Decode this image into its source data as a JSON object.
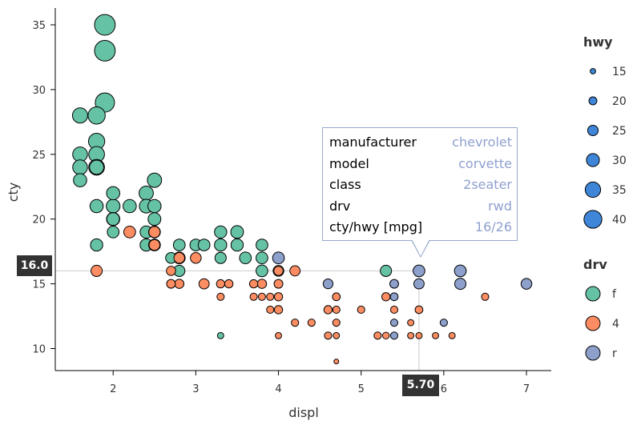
{
  "chart_data": {
    "type": "scatter",
    "xlabel": "displ",
    "ylabel": "cty",
    "xlim": [
      1.3,
      7.3
    ],
    "ylim": [
      8.3,
      36.3
    ],
    "x_ticks": [
      2,
      3,
      4,
      5,
      6,
      7
    ],
    "y_ticks": [
      10,
      15,
      20,
      25,
      30,
      35
    ],
    "size_legend": {
      "title": "hwy",
      "values": [
        15,
        20,
        25,
        30,
        35,
        40
      ]
    },
    "color_legend": {
      "title": "drv",
      "entries": [
        {
          "label": "f",
          "color": "#66c2a5"
        },
        {
          "label": "4",
          "color": "#fc8d62"
        },
        {
          "label": "r",
          "color": "#8da0cb"
        }
      ]
    },
    "points": [
      {
        "x": 1.6,
        "y": 28,
        "hwy": 33,
        "drv": "f"
      },
      {
        "x": 1.6,
        "y": 25,
        "hwy": 32,
        "drv": "f"
      },
      {
        "x": 1.6,
        "y": 24,
        "hwy": 32,
        "drv": "f"
      },
      {
        "x": 1.6,
        "y": 23,
        "hwy": 29,
        "drv": "f"
      },
      {
        "x": 1.8,
        "y": 28,
        "hwy": 37,
        "drv": "f"
      },
      {
        "x": 1.8,
        "y": 26,
        "hwy": 35,
        "drv": "f"
      },
      {
        "x": 1.8,
        "y": 25,
        "hwy": 34,
        "drv": "f"
      },
      {
        "x": 1.8,
        "y": 24,
        "hwy": 34,
        "drv": "f"
      },
      {
        "x": 1.8,
        "y": 24,
        "hwy": 31,
        "drv": "f"
      },
      {
        "x": 1.8,
        "y": 21,
        "hwy": 29,
        "drv": "f"
      },
      {
        "x": 1.8,
        "y": 18,
        "hwy": 27,
        "drv": "f"
      },
      {
        "x": 1.8,
        "y": 16,
        "hwy": 25,
        "drv": "4"
      },
      {
        "x": 1.9,
        "y": 35,
        "hwy": 44,
        "drv": "f"
      },
      {
        "x": 1.9,
        "y": 33,
        "hwy": 44,
        "drv": "f"
      },
      {
        "x": 1.9,
        "y": 29,
        "hwy": 41,
        "drv": "f"
      },
      {
        "x": 2.0,
        "y": 22,
        "hwy": 29,
        "drv": "f"
      },
      {
        "x": 2.0,
        "y": 21,
        "hwy": 30,
        "drv": "f"
      },
      {
        "x": 2.0,
        "y": 20,
        "hwy": 29,
        "drv": "f"
      },
      {
        "x": 2.0,
        "y": 20,
        "hwy": 28,
        "drv": "f"
      },
      {
        "x": 2.0,
        "y": 19,
        "hwy": 26,
        "drv": "f"
      },
      {
        "x": 2.2,
        "y": 21,
        "hwy": 29,
        "drv": "f"
      },
      {
        "x": 2.2,
        "y": 19,
        "hwy": 26,
        "drv": "4"
      },
      {
        "x": 2.4,
        "y": 22,
        "hwy": 31,
        "drv": "f"
      },
      {
        "x": 2.4,
        "y": 21,
        "hwy": 30,
        "drv": "f"
      },
      {
        "x": 2.4,
        "y": 19,
        "hwy": 27,
        "drv": "f"
      },
      {
        "x": 2.4,
        "y": 18,
        "hwy": 27,
        "drv": "f"
      },
      {
        "x": 2.5,
        "y": 23,
        "hwy": 31,
        "drv": "f"
      },
      {
        "x": 2.5,
        "y": 21,
        "hwy": 29,
        "drv": "f"
      },
      {
        "x": 2.5,
        "y": 20,
        "hwy": 28,
        "drv": "f"
      },
      {
        "x": 2.5,
        "y": 19,
        "hwy": 26,
        "drv": "f"
      },
      {
        "x": 2.5,
        "y": 18,
        "hwy": 26,
        "drv": "f"
      },
      {
        "x": 2.5,
        "y": 19,
        "hwy": 25,
        "drv": "4"
      },
      {
        "x": 2.5,
        "y": 18,
        "hwy": 24,
        "drv": "4"
      },
      {
        "x": 2.7,
        "y": 17,
        "hwy": 24,
        "drv": "f"
      },
      {
        "x": 2.7,
        "y": 16,
        "hwy": 21,
        "drv": "4"
      },
      {
        "x": 2.7,
        "y": 15,
        "hwy": 20,
        "drv": "4"
      },
      {
        "x": 2.8,
        "y": 18,
        "hwy": 26,
        "drv": "f"
      },
      {
        "x": 2.8,
        "y": 17,
        "hwy": 26,
        "drv": "f"
      },
      {
        "x": 2.8,
        "y": 16,
        "hwy": 25,
        "drv": "f"
      },
      {
        "x": 2.8,
        "y": 17,
        "hwy": 24,
        "drv": "4"
      },
      {
        "x": 2.8,
        "y": 15,
        "hwy": 21,
        "drv": "4"
      },
      {
        "x": 3.0,
        "y": 18,
        "hwy": 26,
        "drv": "f"
      },
      {
        "x": 3.0,
        "y": 17,
        "hwy": 24,
        "drv": "4"
      },
      {
        "x": 3.1,
        "y": 18,
        "hwy": 26,
        "drv": "f"
      },
      {
        "x": 3.1,
        "y": 15,
        "hwy": 23,
        "drv": "4"
      },
      {
        "x": 3.3,
        "y": 19,
        "hwy": 27,
        "drv": "f"
      },
      {
        "x": 3.3,
        "y": 18,
        "hwy": 27,
        "drv": "f"
      },
      {
        "x": 3.3,
        "y": 17,
        "hwy": 25,
        "drv": "f"
      },
      {
        "x": 3.3,
        "y": 15,
        "hwy": 19,
        "drv": "4"
      },
      {
        "x": 3.3,
        "y": 14,
        "hwy": 17,
        "drv": "4"
      },
      {
        "x": 3.3,
        "y": 11,
        "hwy": 15,
        "drv": "f"
      },
      {
        "x": 3.4,
        "y": 15,
        "hwy": 19,
        "drv": "4"
      },
      {
        "x": 3.5,
        "y": 19,
        "hwy": 28,
        "drv": "f"
      },
      {
        "x": 3.5,
        "y": 18,
        "hwy": 27,
        "drv": "f"
      },
      {
        "x": 3.6,
        "y": 17,
        "hwy": 26,
        "drv": "f"
      },
      {
        "x": 3.7,
        "y": 15,
        "hwy": 19,
        "drv": "4"
      },
      {
        "x": 3.7,
        "y": 14,
        "hwy": 17,
        "drv": "4"
      },
      {
        "x": 3.8,
        "y": 18,
        "hwy": 26,
        "drv": "f"
      },
      {
        "x": 3.8,
        "y": 17,
        "hwy": 26,
        "drv": "f"
      },
      {
        "x": 3.8,
        "y": 16,
        "hwy": 26,
        "drv": "f"
      },
      {
        "x": 3.8,
        "y": 15,
        "hwy": 21,
        "drv": "4"
      },
      {
        "x": 3.8,
        "y": 14,
        "hwy": 17,
        "drv": "4"
      },
      {
        "x": 3.9,
        "y": 14,
        "hwy": 17,
        "drv": "4"
      },
      {
        "x": 3.9,
        "y": 13,
        "hwy": 17,
        "drv": "4"
      },
      {
        "x": 4.0,
        "y": 17,
        "hwy": 26,
        "drv": "r"
      },
      {
        "x": 4.0,
        "y": 16,
        "hwy": 24,
        "drv": "r"
      },
      {
        "x": 4.0,
        "y": 16,
        "hwy": 21,
        "drv": "4"
      },
      {
        "x": 4.0,
        "y": 15,
        "hwy": 20,
        "drv": "4"
      },
      {
        "x": 4.0,
        "y": 14,
        "hwy": 19,
        "drv": "4"
      },
      {
        "x": 4.0,
        "y": 13,
        "hwy": 19,
        "drv": "4"
      },
      {
        "x": 4.0,
        "y": 11,
        "hwy": 15,
        "drv": "4"
      },
      {
        "x": 4.2,
        "y": 16,
        "hwy": 23,
        "drv": "4"
      },
      {
        "x": 4.2,
        "y": 12,
        "hwy": 17,
        "drv": "4"
      },
      {
        "x": 4.4,
        "y": 12,
        "hwy": 17,
        "drv": "4"
      },
      {
        "x": 4.6,
        "y": 15,
        "hwy": 22,
        "drv": "r"
      },
      {
        "x": 4.6,
        "y": 13,
        "hwy": 19,
        "drv": "4"
      },
      {
        "x": 4.6,
        "y": 11,
        "hwy": 17,
        "drv": "4"
      },
      {
        "x": 4.7,
        "y": 14,
        "hwy": 18,
        "drv": "4"
      },
      {
        "x": 4.7,
        "y": 13,
        "hwy": 17,
        "drv": "4"
      },
      {
        "x": 4.7,
        "y": 12,
        "hwy": 17,
        "drv": "4"
      },
      {
        "x": 4.7,
        "y": 11,
        "hwy": 15,
        "drv": "4"
      },
      {
        "x": 4.7,
        "y": 9,
        "hwy": 12,
        "drv": "4"
      },
      {
        "x": 5.0,
        "y": 13,
        "hwy": 17,
        "drv": "4"
      },
      {
        "x": 5.2,
        "y": 11,
        "hwy": 17,
        "drv": "4"
      },
      {
        "x": 5.3,
        "y": 16,
        "hwy": 25,
        "drv": "f"
      },
      {
        "x": 5.3,
        "y": 14,
        "hwy": 19,
        "drv": "4"
      },
      {
        "x": 5.3,
        "y": 11,
        "hwy": 16,
        "drv": "4"
      },
      {
        "x": 5.4,
        "y": 15,
        "hwy": 20,
        "drv": "r"
      },
      {
        "x": 5.4,
        "y": 14,
        "hwy": 18,
        "drv": "r"
      },
      {
        "x": 5.4,
        "y": 13,
        "hwy": 17,
        "drv": "4"
      },
      {
        "x": 5.4,
        "y": 12,
        "hwy": 17,
        "drv": "r"
      },
      {
        "x": 5.4,
        "y": 11,
        "hwy": 17,
        "drv": "r"
      },
      {
        "x": 5.6,
        "y": 12,
        "hwy": 15,
        "drv": "4"
      },
      {
        "x": 5.6,
        "y": 11,
        "hwy": 15,
        "drv": "4"
      },
      {
        "x": 5.7,
        "y": 16,
        "hwy": 26,
        "drv": "r"
      },
      {
        "x": 5.7,
        "y": 15,
        "hwy": 23,
        "drv": "r"
      },
      {
        "x": 5.7,
        "y": 13,
        "hwy": 18,
        "drv": "4"
      },
      {
        "x": 5.7,
        "y": 11,
        "hwy": 15,
        "drv": "4"
      },
      {
        "x": 5.9,
        "y": 11,
        "hwy": 15,
        "drv": "4"
      },
      {
        "x": 6.0,
        "y": 12,
        "hwy": 17,
        "drv": "r"
      },
      {
        "x": 6.1,
        "y": 11,
        "hwy": 15,
        "drv": "4"
      },
      {
        "x": 6.2,
        "y": 16,
        "hwy": 26,
        "drv": "r"
      },
      {
        "x": 6.2,
        "y": 15,
        "hwy": 25,
        "drv": "r"
      },
      {
        "x": 6.5,
        "y": 14,
        "hwy": 17,
        "drv": "4"
      },
      {
        "x": 7.0,
        "y": 15,
        "hwy": 24,
        "drv": "r"
      }
    ]
  },
  "tooltip": {
    "rows": [
      {
        "key": "manufacturer",
        "value": "chevrolet"
      },
      {
        "key": "model",
        "value": "corvette"
      },
      {
        "key": "class",
        "value": "2seater"
      },
      {
        "key": "drv",
        "value": "rwd"
      },
      {
        "key": "cty/hwy [mpg]",
        "value": "16/26"
      }
    ]
  },
  "crosshair": {
    "x_value": "5.70",
    "y_value": "16.0"
  }
}
